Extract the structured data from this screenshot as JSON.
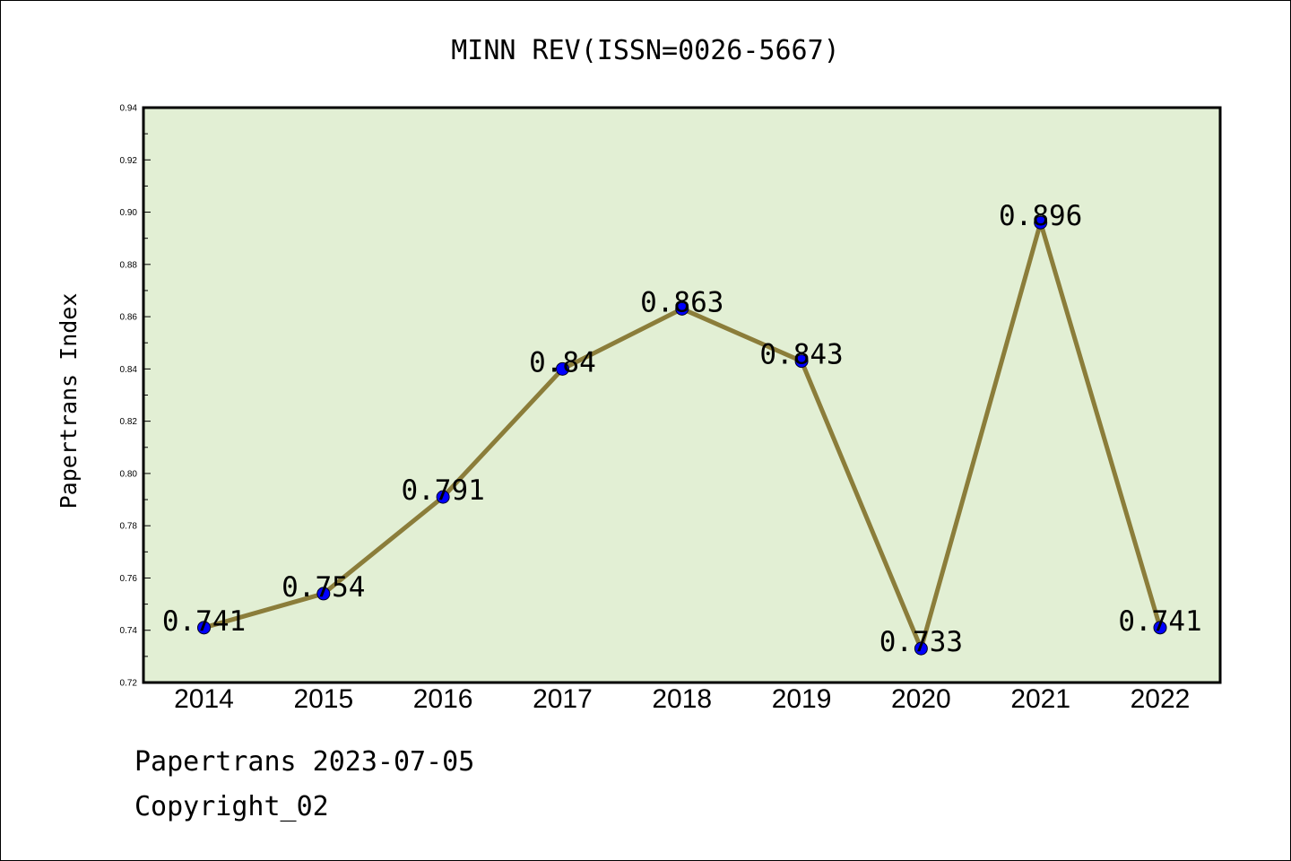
{
  "chart_data": {
    "type": "line",
    "title": "MINN REV(ISSN=0026-5667)",
    "xlabel": "",
    "ylabel": "Papertrans Index",
    "categories": [
      "2014",
      "2015",
      "2016",
      "2017",
      "2018",
      "2019",
      "2020",
      "2021",
      "2022"
    ],
    "series": [
      {
        "values": [
          0.741,
          0.754,
          0.791,
          0.84,
          0.863,
          0.843,
          0.733,
          0.896,
          0.741
        ],
        "data_labels": [
          "0.741",
          "0.754",
          "0.791",
          "0.84",
          "0.863",
          "0.843",
          "0.733",
          "0.896",
          "0.741"
        ]
      }
    ],
    "ylim": [
      0.72,
      0.94
    ],
    "yticks": [
      "0.72",
      "0.74",
      "0.76",
      "0.78",
      "0.80",
      "0.82",
      "0.84",
      "0.86",
      "0.88",
      "0.90",
      "0.92",
      "0.94"
    ],
    "grid": false,
    "legend": "none",
    "colors": {
      "plot_background": "#e2efd4",
      "line": "#8b7d3a",
      "marker": "#0000ff",
      "axis": "#000000"
    }
  },
  "footer": {
    "line1": "Papertrans 2023-07-05",
    "line2": "Copyright_02"
  }
}
